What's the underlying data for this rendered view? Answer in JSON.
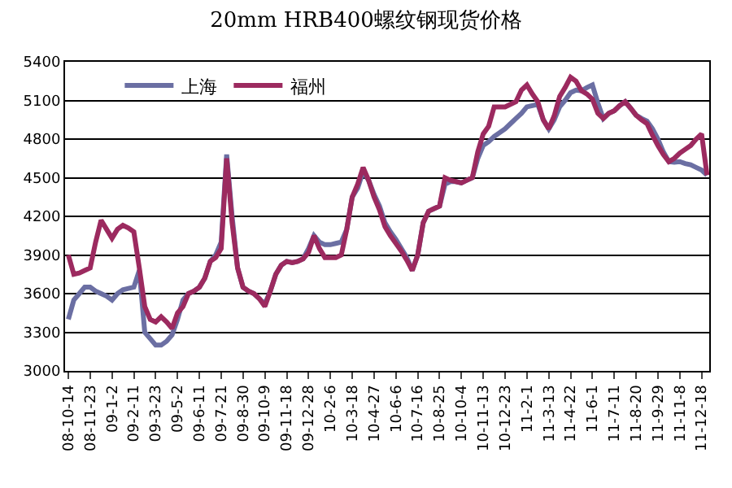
{
  "chart_data": {
    "type": "line",
    "title": "20mm HRB400螺纹钢现货价格",
    "categories": [
      "08-10-14",
      null,
      null,
      null,
      "08-11-23",
      null,
      null,
      null,
      "09-1-2",
      null,
      null,
      null,
      "09-2-11",
      null,
      null,
      null,
      "09-3-23",
      null,
      null,
      null,
      "09-5-2",
      null,
      null,
      null,
      "09-6-11",
      null,
      null,
      null,
      "09-7-21",
      null,
      null,
      null,
      "09-8-30",
      null,
      null,
      null,
      "09-10-9",
      null,
      null,
      null,
      "09-11-18",
      null,
      null,
      null,
      "09-12-28",
      null,
      null,
      null,
      "10-2-6",
      null,
      null,
      null,
      "10-3-18",
      null,
      null,
      null,
      "10-4-27",
      null,
      null,
      null,
      "10-6-6",
      null,
      null,
      null,
      "10-7-16",
      null,
      null,
      null,
      "10-8-25",
      null,
      null,
      null,
      "10-10-4",
      null,
      null,
      null,
      "10-11-13",
      null,
      null,
      null,
      "10-12-23",
      null,
      null,
      null,
      "11-2-1",
      null,
      null,
      null,
      "11-3-13",
      null,
      null,
      null,
      "11-4-22",
      null,
      null,
      null,
      "11-6-1",
      null,
      null,
      null,
      "11-7-11",
      null,
      null,
      null,
      "11-8-20",
      null,
      null,
      null,
      "11-9-29",
      null,
      null,
      null,
      "11-11-8",
      null,
      null,
      null,
      "11-12-18",
      null
    ],
    "series": [
      {
        "name": "上海",
        "color": "#6b6fa3",
        "values": [
          3400,
          3550,
          3600,
          3650,
          3650,
          3620,
          3600,
          3580,
          3550,
          3600,
          3630,
          3640,
          3650,
          3780,
          3300,
          3250,
          3200,
          3200,
          3230,
          3280,
          3400,
          3550,
          3600,
          3620,
          3650,
          3720,
          3850,
          3900,
          4000,
          4680,
          4200,
          3800,
          3650,
          3620,
          3600,
          3560,
          3520,
          3620,
          3750,
          3820,
          3850,
          3840,
          3850,
          3870,
          3950,
          4050,
          4000,
          3980,
          3980,
          3990,
          4000,
          4100,
          4350,
          4420,
          4550,
          4480,
          4370,
          4280,
          4150,
          4080,
          4020,
          3950,
          3880,
          3780,
          3900,
          4150,
          4240,
          4260,
          4280,
          4450,
          4470,
          4470,
          4460,
          4480,
          4500,
          4650,
          4750,
          4780,
          4820,
          4850,
          4880,
          4920,
          4960,
          5000,
          5050,
          5060,
          5070,
          4950,
          4880,
          4950,
          5050,
          5100,
          5160,
          5180,
          5175,
          5200,
          5220,
          5080,
          4960,
          5000,
          5020,
          5060,
          5090,
          5040,
          4985,
          4960,
          4940,
          4880,
          4800,
          4700,
          4625,
          4620,
          4625,
          4610,
          4600,
          4580,
          4560,
          4520
        ]
      },
      {
        "name": "福州",
        "color": "#9c2a5f",
        "values": [
          3900,
          3750,
          3760,
          3780,
          3800,
          4000,
          4170,
          4100,
          4030,
          4100,
          4130,
          4110,
          4080,
          3800,
          3500,
          3400,
          3380,
          3420,
          3380,
          3330,
          3450,
          3500,
          3600,
          3620,
          3650,
          3720,
          3850,
          3880,
          3950,
          4650,
          4150,
          3800,
          3650,
          3620,
          3600,
          3560,
          3500,
          3620,
          3750,
          3820,
          3850,
          3840,
          3850,
          3870,
          3920,
          4050,
          3950,
          3880,
          3880,
          3880,
          3900,
          4100,
          4350,
          4450,
          4580,
          4480,
          4350,
          4250,
          4120,
          4050,
          3990,
          3930,
          3860,
          3780,
          3900,
          4150,
          4240,
          4260,
          4280,
          4500,
          4480,
          4470,
          4460,
          4480,
          4500,
          4700,
          4840,
          4900,
          5050,
          5050,
          5050,
          5070,
          5090,
          5180,
          5220,
          5150,
          5090,
          4950,
          4880,
          4980,
          5130,
          5200,
          5280,
          5250,
          5175,
          5150,
          5110,
          5000,
          4960,
          5000,
          5020,
          5060,
          5090,
          5040,
          4985,
          4950,
          4920,
          4830,
          4750,
          4680,
          4625,
          4650,
          4690,
          4720,
          4750,
          4800,
          4840,
          4520
        ]
      }
    ],
    "ylim": [
      3000,
      5400
    ],
    "yticks": [
      3000,
      3300,
      3600,
      3900,
      4200,
      4500,
      4800,
      5100,
      5400
    ],
    "grid": "y",
    "legend": "top left",
    "marker": "none",
    "line_style": "solid"
  }
}
